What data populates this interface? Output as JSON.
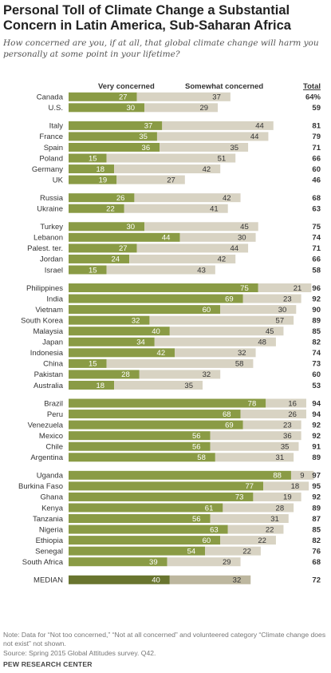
{
  "header": {
    "title": "Personal Toll of Climate Change a Substantial Concern in Latin America, Sub-Saharan Africa",
    "subtitle": "How concerned are you, if at all, that global climate change will harm you personally at some point in your lifetime?"
  },
  "footer": {
    "note": "Note: Data for “Not too concerned,” “Not at all concerned” and volunteered category “Climate change does not exist” not shown.",
    "source": "Source: Spring 2015 Global Attitudes survey. Q42.",
    "org": "PEW RESEARCH CENTER"
  },
  "colors": {
    "very": "#8a9b45",
    "somewhat": "#d8d3c3",
    "median_very": "#69752f",
    "median_somewhat": "#bdb79f"
  },
  "chart_data": {
    "type": "bar",
    "stacked": true,
    "orientation": "horizontal",
    "legend_placement": "top",
    "series_names": [
      "Very concerned",
      "Somewhat concerned"
    ],
    "total_label": "Total",
    "groups": [
      {
        "rows": [
          {
            "country": "Canada",
            "very": 27,
            "somewhat": 37,
            "total": "64%"
          },
          {
            "country": "U.S.",
            "very": 30,
            "somewhat": 29,
            "total": "59"
          }
        ]
      },
      {
        "rows": [
          {
            "country": "Italy",
            "very": 37,
            "somewhat": 44,
            "total": "81"
          },
          {
            "country": "France",
            "very": 35,
            "somewhat": 44,
            "total": "79"
          },
          {
            "country": "Spain",
            "very": 36,
            "somewhat": 35,
            "total": "71"
          },
          {
            "country": "Poland",
            "very": 15,
            "somewhat": 51,
            "total": "66"
          },
          {
            "country": "Germany",
            "very": 18,
            "somewhat": 42,
            "total": "60"
          },
          {
            "country": "UK",
            "very": 19,
            "somewhat": 27,
            "total": "46"
          }
        ]
      },
      {
        "rows": [
          {
            "country": "Russia",
            "very": 26,
            "somewhat": 42,
            "total": "68"
          },
          {
            "country": "Ukraine",
            "very": 22,
            "somewhat": 41,
            "total": "63"
          }
        ]
      },
      {
        "rows": [
          {
            "country": "Turkey",
            "very": 30,
            "somewhat": 45,
            "total": "75"
          },
          {
            "country": "Lebanon",
            "very": 44,
            "somewhat": 30,
            "total": "74"
          },
          {
            "country": "Palest. ter.",
            "very": 27,
            "somewhat": 44,
            "total": "71"
          },
          {
            "country": "Jordan",
            "very": 24,
            "somewhat": 42,
            "total": "66"
          },
          {
            "country": "Israel",
            "very": 15,
            "somewhat": 43,
            "total": "58"
          }
        ]
      },
      {
        "rows": [
          {
            "country": "Philippines",
            "very": 75,
            "somewhat": 21,
            "total": "96"
          },
          {
            "country": "India",
            "very": 69,
            "somewhat": 23,
            "total": "92"
          },
          {
            "country": "Vietnam",
            "very": 60,
            "somewhat": 30,
            "total": "90"
          },
          {
            "country": "South Korea",
            "very": 32,
            "somewhat": 57,
            "total": "89"
          },
          {
            "country": "Malaysia",
            "very": 40,
            "somewhat": 45,
            "total": "85"
          },
          {
            "country": "Japan",
            "very": 34,
            "somewhat": 48,
            "total": "82"
          },
          {
            "country": "Indonesia",
            "very": 42,
            "somewhat": 32,
            "total": "74"
          },
          {
            "country": "China",
            "very": 15,
            "somewhat": 58,
            "total": "73"
          },
          {
            "country": "Pakistan",
            "very": 28,
            "somewhat": 32,
            "total": "60"
          },
          {
            "country": "Australia",
            "very": 18,
            "somewhat": 35,
            "total": "53"
          }
        ]
      },
      {
        "rows": [
          {
            "country": "Brazil",
            "very": 78,
            "somewhat": 16,
            "total": "94"
          },
          {
            "country": "Peru",
            "very": 68,
            "somewhat": 26,
            "total": "94"
          },
          {
            "country": "Venezuela",
            "very": 69,
            "somewhat": 23,
            "total": "92"
          },
          {
            "country": "Mexico",
            "very": 56,
            "somewhat": 36,
            "total": "92"
          },
          {
            "country": "Chile",
            "very": 56,
            "somewhat": 35,
            "total": "91"
          },
          {
            "country": "Argentina",
            "very": 58,
            "somewhat": 31,
            "total": "89"
          }
        ]
      },
      {
        "rows": [
          {
            "country": "Uganda",
            "very": 88,
            "somewhat": 9,
            "total": "97"
          },
          {
            "country": "Burkina Faso",
            "very": 77,
            "somewhat": 18,
            "total": "95"
          },
          {
            "country": "Ghana",
            "very": 73,
            "somewhat": 19,
            "total": "92"
          },
          {
            "country": "Kenya",
            "very": 61,
            "somewhat": 28,
            "total": "89"
          },
          {
            "country": "Tanzania",
            "very": 56,
            "somewhat": 31,
            "total": "87"
          },
          {
            "country": "Nigeria",
            "very": 63,
            "somewhat": 22,
            "total": "85"
          },
          {
            "country": "Ethiopia",
            "very": 60,
            "somewhat": 22,
            "total": "82"
          },
          {
            "country": "Senegal",
            "very": 54,
            "somewhat": 22,
            "total": "76"
          },
          {
            "country": "South Africa",
            "very": 39,
            "somewhat": 29,
            "total": "68"
          }
        ]
      },
      {
        "median": true,
        "rows": [
          {
            "country": "MEDIAN",
            "very": 40,
            "somewhat": 32,
            "total": "72"
          }
        ]
      }
    ]
  }
}
